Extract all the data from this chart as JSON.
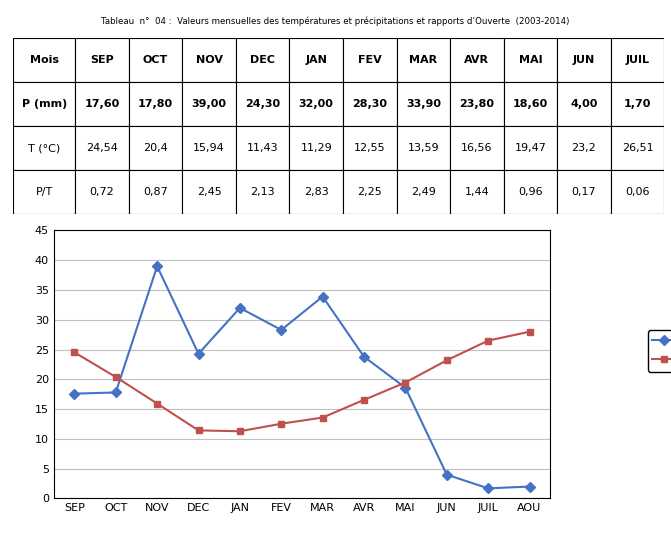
{
  "months_table": [
    "SEP",
    "OCT",
    "NOV",
    "DEC",
    "JAN",
    "FEV",
    "MAR",
    "AVR",
    "MAI",
    "JUN",
    "JUIL"
  ],
  "p_display": [
    "17,60",
    "17,80",
    "39,00",
    "24,30",
    "32,00",
    "28,30",
    "33,90",
    "23,80",
    "18,60",
    "4,00",
    "1,70"
  ],
  "t_display": [
    "24,54",
    "20,4",
    "15,94",
    "11,43",
    "11,29",
    "12,55",
    "13,59",
    "16,56",
    "19,47",
    "23,2",
    "26,51"
  ],
  "pt_display": [
    "0,72",
    "0,87",
    "2,45",
    "2,13",
    "2,83",
    "2,25",
    "2,49",
    "1,44",
    "0,96",
    "0,17",
    "0,06"
  ],
  "chart_months": [
    "SEP",
    "OCT",
    "NOV",
    "DEC",
    "JAN",
    "FEV",
    "MAR",
    "AVR",
    "MAI",
    "JUN",
    "JUIL",
    "AOU"
  ],
  "chart_P": [
    17.6,
    17.8,
    39.0,
    24.3,
    32.0,
    28.3,
    33.9,
    23.8,
    18.6,
    4.0,
    1.7,
    2.0
  ],
  "chart_T": [
    24.54,
    20.4,
    15.94,
    11.43,
    11.29,
    12.55,
    13.59,
    16.56,
    19.47,
    23.2,
    26.51,
    28.0
  ],
  "P_color": "#4472C4",
  "T_color": "#C0504D",
  "grid_color": "#C0C0C0",
  "ylim": [
    0,
    45
  ],
  "yticks": [
    0,
    5,
    10,
    15,
    20,
    25,
    30,
    35,
    40,
    45
  ],
  "title": "Tableau  n°  04 :  Valeurs mensuelles des températures et précipitations et rapports d’Ouverte  (2003-2014)",
  "row_labels": [
    "Mois",
    "P (mm)",
    "T (°C)",
    "P/T"
  ],
  "table_fontsize": 8.0,
  "chart_fontsize": 8.0
}
